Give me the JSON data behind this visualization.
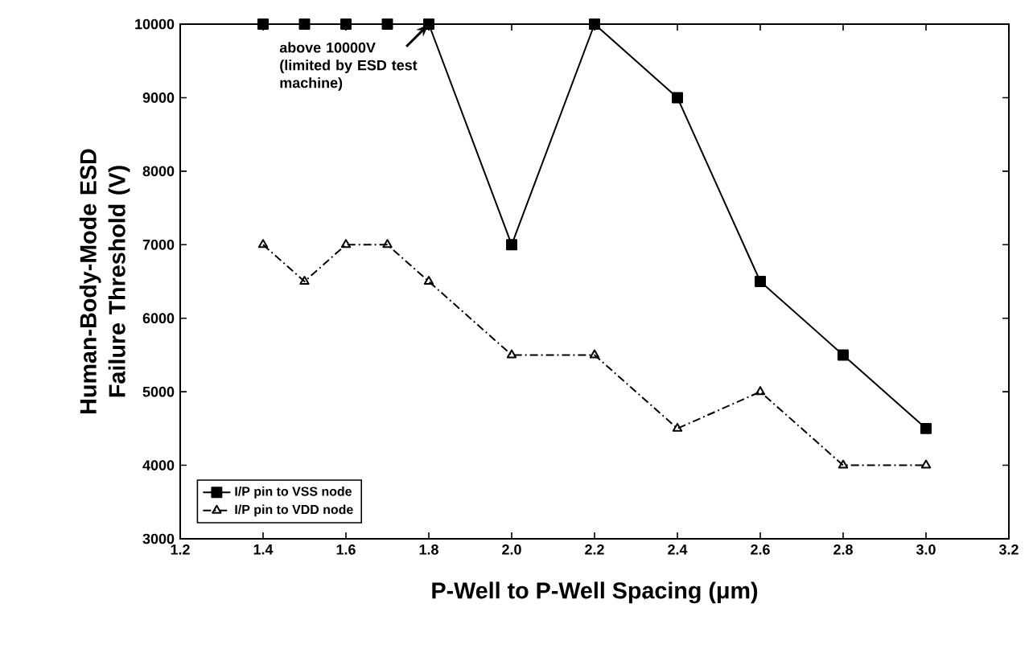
{
  "chart_data": {
    "type": "line",
    "xlabel": "P-Well to P-Well Spacing (μm)",
    "ylabel": "Human-Body-Mode ESD Failure Threshold (V)",
    "xlim": [
      1.2,
      3.2
    ],
    "xticks": [
      1.2,
      1.4,
      1.6,
      1.8,
      {
        "value": 2,
        "label": "2.0"
      },
      2.2,
      2.4,
      2.6,
      2.8,
      {
        "value": 3,
        "label": "3.0"
      },
      3.2
    ],
    "ylim": [
      3000,
      10000
    ],
    "yticks": [
      3000,
      4000,
      5000,
      6000,
      7000,
      8000,
      9000,
      10000
    ],
    "grid": false,
    "legend": "bottom left",
    "series": [
      {
        "name": "I/P pin to VSS node",
        "color": "#000000",
        "marker": "square",
        "line_style": "solid",
        "x": [
          1.4,
          1.5,
          1.6,
          1.7,
          1.8,
          2.0,
          2.2,
          2.4,
          2.6,
          2.8,
          3.0
        ],
        "values": [
          10000,
          10000,
          10000,
          10000,
          10000,
          7000,
          10000,
          9000,
          6500,
          5500,
          4500
        ]
      },
      {
        "name": "I/P pin to VDD node",
        "color": "#000000",
        "marker": "triangle",
        "line_style": "dashed",
        "x": [
          1.4,
          1.5,
          1.6,
          1.7,
          1.8,
          2.0,
          2.2,
          2.4,
          2.6,
          2.8,
          3.0
        ],
        "values": [
          7000,
          6500,
          7000,
          7000,
          6500,
          5500,
          5500,
          4500,
          5000,
          4000,
          4000
        ]
      }
    ],
    "annotations": [
      {
        "text": "above 10000V (limited by ESD test machine)",
        "x": 1.8,
        "y": 10000
      }
    ]
  }
}
